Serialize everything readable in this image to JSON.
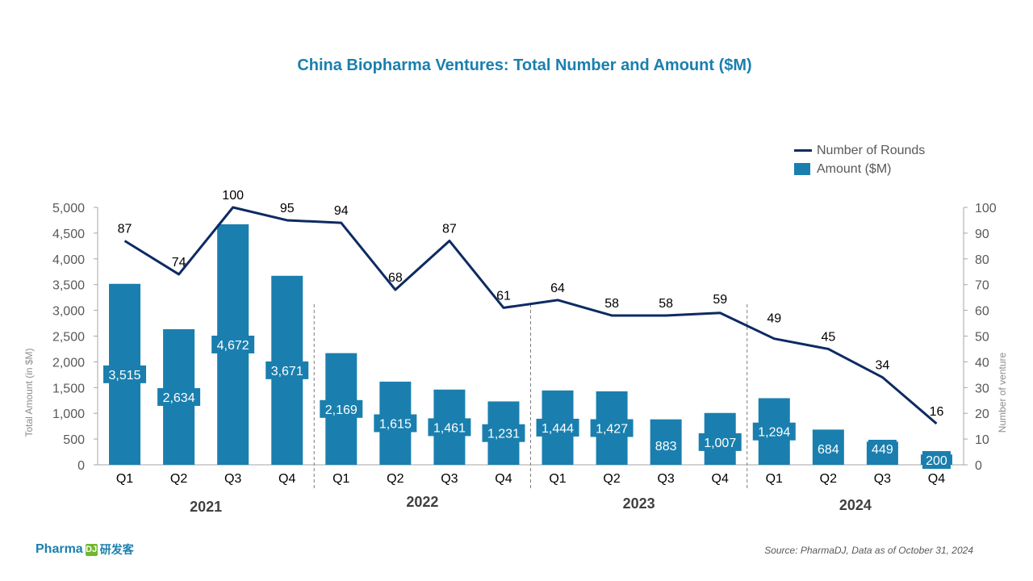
{
  "title": "China Biopharma Ventures: Total Number and Amount ($M)",
  "legend": {
    "line_label": "Number of Rounds",
    "bar_label": "Amount ($M)"
  },
  "footer": {
    "brand": "Pharma",
    "brand_mark": "DJ",
    "brand_cn": "研发客",
    "source": "Source: PharmaDJ, Data as of October 31, 2024"
  },
  "colors": {
    "bar": "#1a7fae",
    "line": "#0d2a63",
    "title": "#1a7fae"
  },
  "chart_data": {
    "type": "bar+line",
    "title": "China Biopharma Ventures: Total Number and Amount ($M)",
    "categories": [
      "Q1",
      "Q2",
      "Q3",
      "Q4",
      "Q1",
      "Q2",
      "Q3",
      "Q4",
      "Q1",
      "Q2",
      "Q3",
      "Q4",
      "Q1",
      "Q2",
      "Q3",
      "Q4"
    ],
    "groups": [
      {
        "label": "2021",
        "quarters": 4
      },
      {
        "label": "2022",
        "quarters": 4
      },
      {
        "label": "2023",
        "quarters": 4
      },
      {
        "label": "2024",
        "quarters": 4
      }
    ],
    "series": [
      {
        "name": "Amount ($M)",
        "type": "bar",
        "axis": "left",
        "values": [
          3515,
          2634,
          4672,
          3671,
          2169,
          1615,
          1461,
          1231,
          1444,
          1427,
          883,
          1007,
          1294,
          684,
          449,
          200
        ],
        "labels": [
          "3,515",
          "2,634",
          "4,672",
          "3,671",
          "2,169",
          "1,615",
          "1,461",
          "1,231",
          "1,444",
          "1,427",
          "883",
          "1,007",
          "1,294",
          "684",
          "449",
          "200"
        ]
      },
      {
        "name": "Number of Rounds",
        "type": "line",
        "axis": "right",
        "values": [
          87,
          74,
          100,
          95,
          94,
          68,
          87,
          61,
          64,
          58,
          58,
          59,
          49,
          45,
          34,
          16
        ]
      }
    ],
    "y_left": {
      "label": "Total Amount (in $M)",
      "range": [
        0,
        5000
      ],
      "ticks": [
        0,
        500,
        1000,
        1500,
        2000,
        2500,
        3000,
        3500,
        4000,
        4500,
        5000
      ],
      "tick_labels": [
        "0",
        "500",
        "1,000",
        "1,500",
        "2,000",
        "2,500",
        "3,000",
        "3,500",
        "4,000",
        "4,500",
        "5,000"
      ]
    },
    "y_right": {
      "label": "Number of venture",
      "range": [
        0,
        100
      ],
      "ticks": [
        0,
        10,
        20,
        30,
        40,
        50,
        60,
        70,
        80,
        90,
        100
      ]
    },
    "legend_position": "top-right",
    "grid": false
  }
}
